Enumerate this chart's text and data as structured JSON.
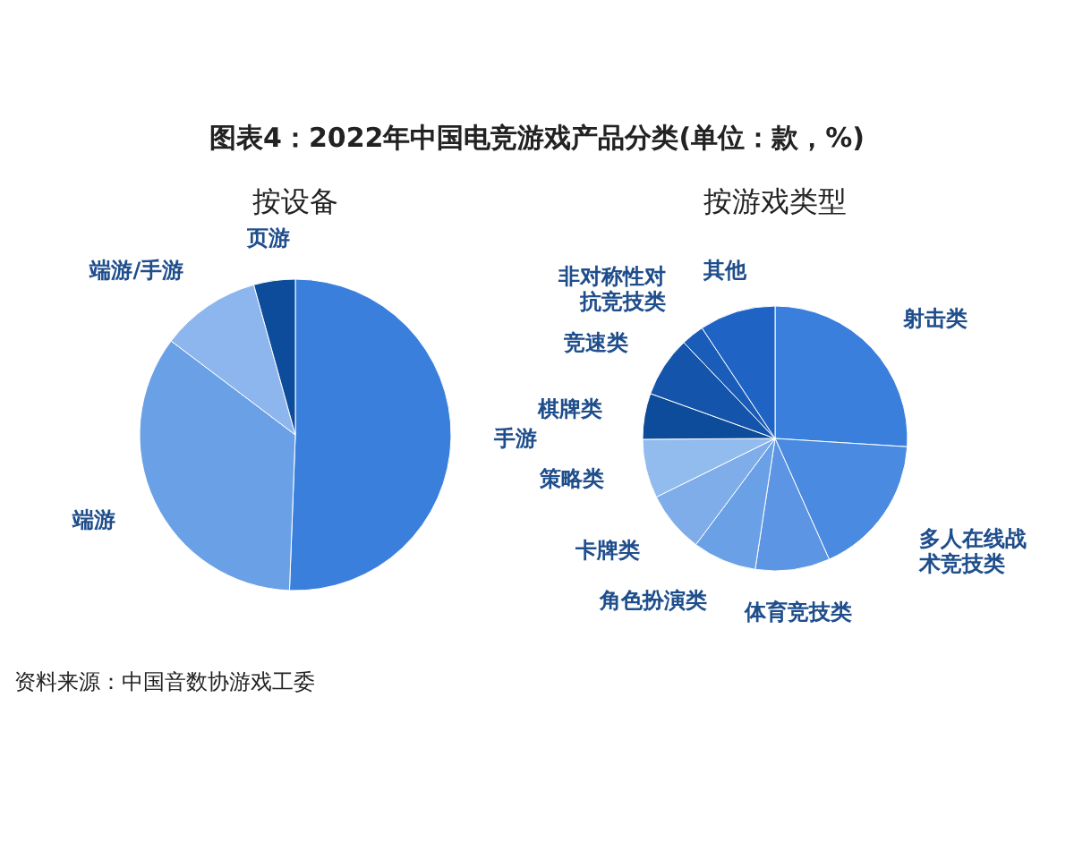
{
  "chart_data": [
    {
      "type": "pie",
      "title": "图表4：2022年中国电竞游戏产品分类(单位：款，%)",
      "subtitle": "按设备",
      "categories": [
        "手游",
        "端游",
        "端游/手游",
        "页游"
      ],
      "values": [
        50.6,
        34.7,
        10.4,
        4.3
      ],
      "colors": [
        "#3a7fdc",
        "#6aa0e6",
        "#8db6ee",
        "#0d4c9a"
      ],
      "annotations": [
        "资料来源：中国音数协游戏工委"
      ]
    },
    {
      "type": "pie",
      "title": "按游戏类型",
      "categories": [
        "射击类",
        "多人在线战术竞技类",
        "体育竞技类",
        "角色扮演类",
        "卡牌类",
        "策略类",
        "棋牌类",
        "竞速类",
        "非对称性对抗竞技类",
        "其他"
      ],
      "values": [
        26,
        17.3,
        9.1,
        7.8,
        7.5,
        7.2,
        5.6,
        7.4,
        2.8,
        9.3
      ],
      "colors": [
        "#3a7fdc",
        "#4a8ae0",
        "#5b95e3",
        "#6aa0e6",
        "#7eade9",
        "#92bbee",
        "#0d4c9a",
        "#1455ab",
        "#1a5db8",
        "#1f63c4"
      ]
    }
  ]
}
